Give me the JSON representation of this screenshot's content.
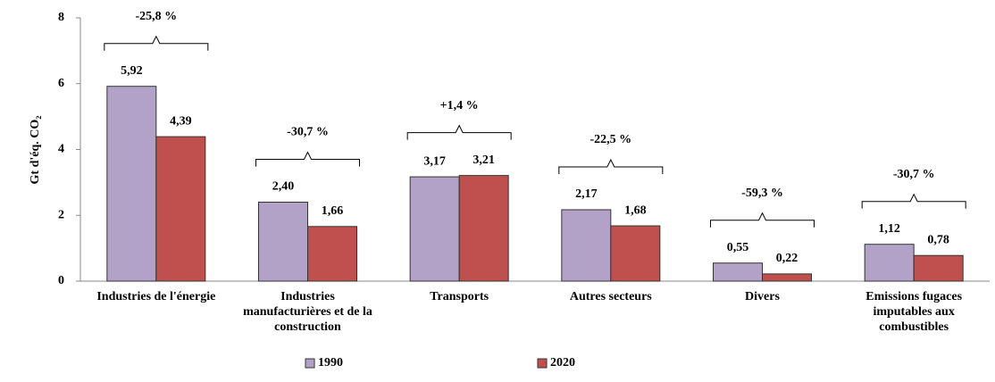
{
  "chart_data": {
    "type": "bar",
    "y_label": "Gt d'éq. CO₂",
    "categories": [
      "Industries de l'énergie",
      "Industries manufacturières et de la construction",
      "Transports",
      "Autres secteurs",
      "Divers",
      "Emissions fugaces imputables aux combustibles"
    ],
    "series": [
      {
        "name": "1990",
        "color": "#b3a2c7",
        "values": [
          5.92,
          2.4,
          3.17,
          2.17,
          0.55,
          1.12
        ],
        "value_labels": [
          "5,92",
          "2,40",
          "3,17",
          "2,17",
          "0,55",
          "1,12"
        ]
      },
      {
        "name": "2020",
        "color": "#c0504d",
        "values": [
          4.39,
          1.66,
          3.21,
          1.68,
          0.22,
          0.78
        ],
        "value_labels": [
          "4,39",
          "1,66",
          "3,21",
          "1,68",
          "0,22",
          "0,78"
        ]
      }
    ],
    "changes": [
      "-25,8 %",
      "-30,7 %",
      "+1,4 %",
      "-22,5 %",
      "-59,3 %",
      "-30,7 %"
    ],
    "ylim": [
      0,
      8
    ],
    "yticks": [
      0,
      2,
      4,
      6,
      8
    ],
    "grid": false
  }
}
